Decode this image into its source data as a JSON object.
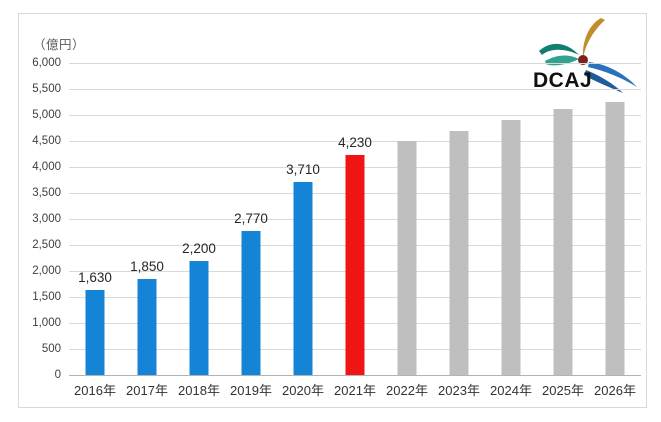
{
  "unit_label": "（億円）",
  "logo": {
    "text": "DCAJ",
    "colors": {
      "teal_wing": "#117e6f",
      "teal_wing_light": "#2fa38f",
      "gold_wing": "#c08c2e",
      "blue_wing": "#2a72b9",
      "blue_wing_dark": "#1d5d9c",
      "dot": "#7c2222",
      "text": "#111111"
    }
  },
  "chart_data": {
    "type": "bar",
    "title": "",
    "xlabel": "",
    "ylabel": "（億円）",
    "ylim": [
      0,
      6000
    ],
    "ytick_interval": 500,
    "grid": true,
    "legend": "none",
    "categories": [
      "2016年",
      "2017年",
      "2018年",
      "2019年",
      "2020年",
      "2021年",
      "2022年",
      "2023年",
      "2024年",
      "2025年",
      "2026年"
    ],
    "values": [
      1630,
      1850,
      2200,
      2770,
      3710,
      4230,
      4500,
      4690,
      4900,
      5120,
      5250
    ],
    "data_labels": [
      "1,630",
      "1,850",
      "2,200",
      "2,770",
      "3,710",
      "4,230",
      "",
      "",
      "",
      "",
      ""
    ],
    "bar_roles": [
      "actual",
      "actual",
      "actual",
      "actual",
      "actual",
      "highlight",
      "forecast",
      "forecast",
      "forecast",
      "forecast",
      "forecast"
    ],
    "colors": {
      "actual": "#1584d6",
      "highlight": "#f01414",
      "forecast": "#bfbfbf",
      "gridline": "#d9d9d9",
      "axis_line": "#b3b3b3",
      "tick_text": "#404040",
      "label_text": "#262626"
    }
  }
}
